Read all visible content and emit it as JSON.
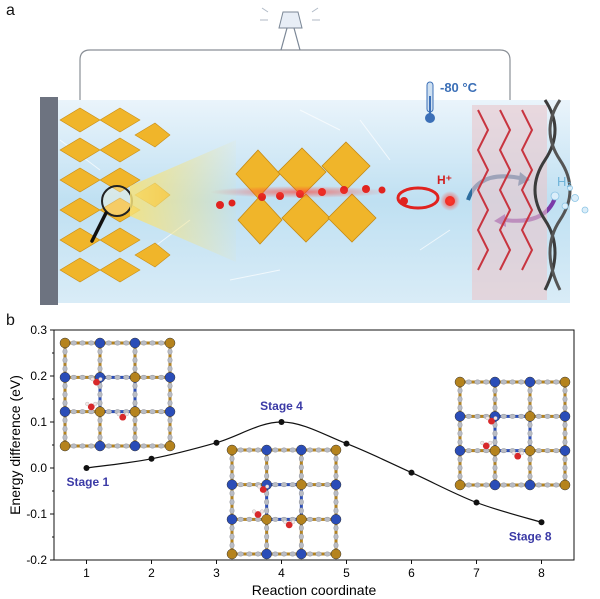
{
  "panel_a": {
    "label": "a",
    "temperature": "-80 °C",
    "proton": "H⁺",
    "hydrogen": "H₂"
  },
  "panel_b": {
    "label": "b"
  },
  "colors": {
    "curve": "#111111",
    "stage_label": "#3b3aa6",
    "zr_atom": "#b5831d",
    "n_atom": "#2a4db8",
    "c_atom": "#b9bcc4",
    "o_atom": "#d8282a",
    "octahedra": "#f0b52a"
  },
  "chart_data": {
    "type": "line",
    "title": "",
    "xlabel": "Reaction coordinate",
    "ylabel": "Energy difference (eV)",
    "xlim": [
      0.5,
      8.5
    ],
    "ylim": [
      -0.2,
      0.3
    ],
    "x_ticks": [
      "1",
      "2",
      "3",
      "4",
      "5",
      "6",
      "7",
      "8"
    ],
    "y_ticks": [
      "-0.2",
      "-0.1",
      "0.0",
      "0.1",
      "0.2",
      "0.3"
    ],
    "grid": false,
    "series": [
      {
        "x": [
          1,
          2,
          3,
          4,
          5,
          6,
          7,
          8
        ],
        "values": [
          0.0,
          0.02,
          0.055,
          0.1,
          0.053,
          -0.01,
          -0.075,
          -0.118
        ]
      }
    ],
    "annotations": [
      {
        "text": "Stage 1",
        "x": 1
      },
      {
        "text": "Stage 4",
        "x": 4
      },
      {
        "text": "Stage 8",
        "x": 8
      }
    ]
  }
}
